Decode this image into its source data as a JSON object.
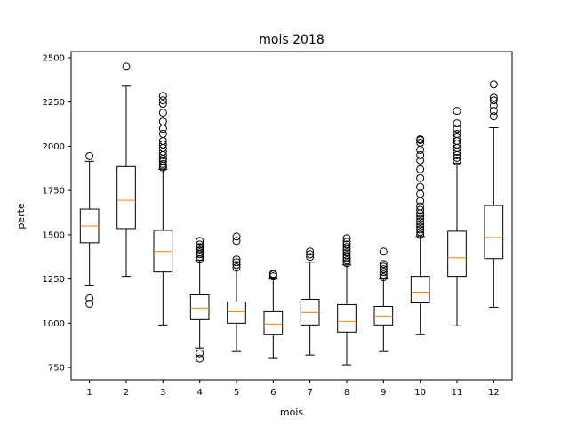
{
  "chart_data": {
    "type": "box",
    "title": "mois 2018",
    "xlabel": "mois",
    "ylabel": "perte",
    "ylim": [
      680,
      2535
    ],
    "yticks": [
      750,
      1000,
      1250,
      1500,
      1750,
      2000,
      2250,
      2500
    ],
    "categories": [
      "1",
      "2",
      "3",
      "4",
      "5",
      "6",
      "7",
      "8",
      "9",
      "10",
      "11",
      "12"
    ],
    "boxes": [
      {
        "whislo": 1215,
        "q1": 1455,
        "med": 1550,
        "q3": 1645,
        "whishi": 1915,
        "fliers": [
          1945,
          1140,
          1110
        ]
      },
      {
        "whislo": 1265,
        "q1": 1535,
        "med": 1695,
        "q3": 1885,
        "whishi": 2340,
        "fliers": [
          2450
        ]
      },
      {
        "whislo": 990,
        "q1": 1290,
        "med": 1405,
        "q3": 1525,
        "whishi": 1870,
        "fliers": [
          1880,
          1890,
          1900,
          1915,
          1930,
          1950,
          1970,
          1990,
          2010,
          2030,
          2070,
          2100,
          2140,
          2190,
          2240,
          2260,
          2285
        ]
      },
      {
        "whislo": 860,
        "q1": 1020,
        "med": 1085,
        "q3": 1160,
        "whishi": 1355,
        "fliers": [
          1360,
          1375,
          1390,
          1400,
          1410,
          1420,
          1430,
          1445,
          1465,
          830,
          800
        ]
      },
      {
        "whislo": 840,
        "q1": 1000,
        "med": 1065,
        "q3": 1120,
        "whishi": 1300,
        "fliers": [
          1315,
          1330,
          1345,
          1360,
          1465,
          1490
        ]
      },
      {
        "whislo": 805,
        "q1": 935,
        "med": 995,
        "q3": 1065,
        "whishi": 1250,
        "fliers": [
          1265,
          1275,
          1280
        ]
      },
      {
        "whislo": 820,
        "q1": 990,
        "med": 1060,
        "q3": 1135,
        "whishi": 1345,
        "fliers": [
          1375,
          1390,
          1405
        ]
      },
      {
        "whislo": 765,
        "q1": 950,
        "med": 1010,
        "q3": 1105,
        "whishi": 1330,
        "fliers": [
          1340,
          1355,
          1370,
          1385,
          1400,
          1415,
          1430,
          1445,
          1460,
          1480
        ]
      },
      {
        "whislo": 840,
        "q1": 990,
        "med": 1040,
        "q3": 1095,
        "whishi": 1250,
        "fliers": [
          1260,
          1275,
          1290,
          1305,
          1320,
          1335,
          1405
        ]
      },
      {
        "whislo": 935,
        "q1": 1115,
        "med": 1175,
        "q3": 1265,
        "whishi": 1490,
        "fliers": [
          1500,
          1515,
          1530,
          1545,
          1560,
          1575,
          1590,
          1605,
          1620,
          1640,
          1660,
          1690,
          1730,
          1770,
          1820,
          1870,
          1920,
          1950,
          1980,
          2020,
          2035,
          2040
        ]
      },
      {
        "whislo": 985,
        "q1": 1265,
        "med": 1370,
        "q3": 1520,
        "whishi": 1905,
        "fliers": [
          1915,
          1935,
          1950,
          1970,
          1990,
          2010,
          2030,
          2050,
          2070,
          2100,
          2130,
          2200
        ]
      },
      {
        "whislo": 1090,
        "q1": 1365,
        "med": 1485,
        "q3": 1665,
        "whishi": 2105,
        "fliers": [
          2170,
          2200,
          2230,
          2260,
          2275,
          2350
        ]
      }
    ],
    "colors": {
      "box": "#000000",
      "median": "#ff7f0e",
      "flier": "#000000",
      "background": "#ffffff"
    },
    "grid": false,
    "legend": "none"
  }
}
